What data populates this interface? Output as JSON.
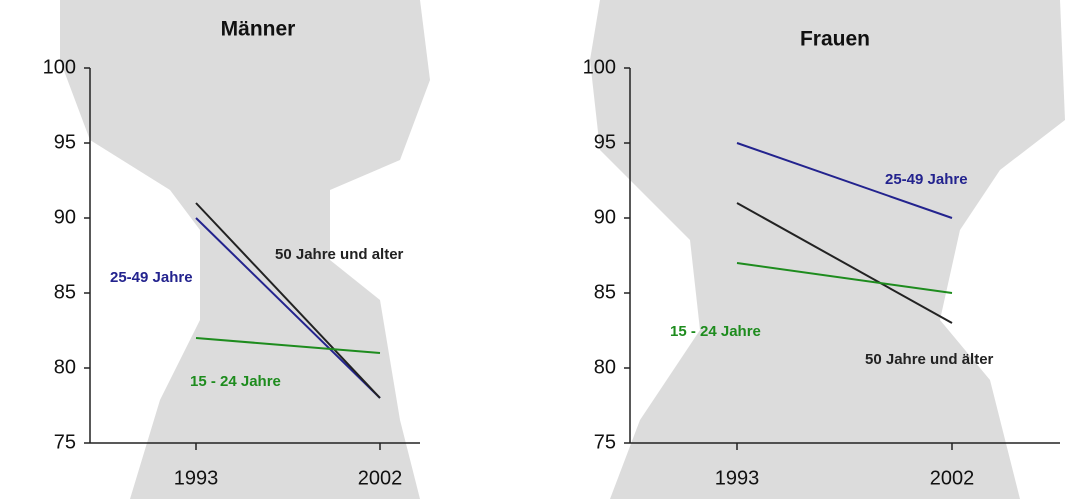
{
  "chart_data": [
    {
      "type": "line",
      "title": "Männer",
      "categories": [
        "1993",
        "2002"
      ],
      "ylim": [
        75,
        100
      ],
      "yticks": [
        75,
        80,
        85,
        90,
        95,
        100
      ],
      "series": [
        {
          "name": "25-49 Jahre",
          "color": "#23238e",
          "values": [
            90,
            78
          ]
        },
        {
          "name": "50 Jahre und alter",
          "color": "#222222",
          "values": [
            91,
            78
          ]
        },
        {
          "name": "15 - 24 Jahre",
          "color": "#1e8c1e",
          "values": [
            82,
            81
          ]
        }
      ]
    },
    {
      "type": "line",
      "title": "Frauen",
      "categories": [
        "1993",
        "2002"
      ],
      "ylim": [
        75,
        100
      ],
      "yticks": [
        75,
        80,
        85,
        90,
        95,
        100
      ],
      "series": [
        {
          "name": "25-49 Jahre",
          "color": "#23238e",
          "values": [
            95,
            90
          ]
        },
        {
          "name": "50 Jahre und älter",
          "color": "#222222",
          "values": [
            91,
            83
          ]
        },
        {
          "name": "15 - 24 Jahre",
          "color": "#1e8c1e",
          "values": [
            87,
            85
          ]
        }
      ]
    }
  ]
}
